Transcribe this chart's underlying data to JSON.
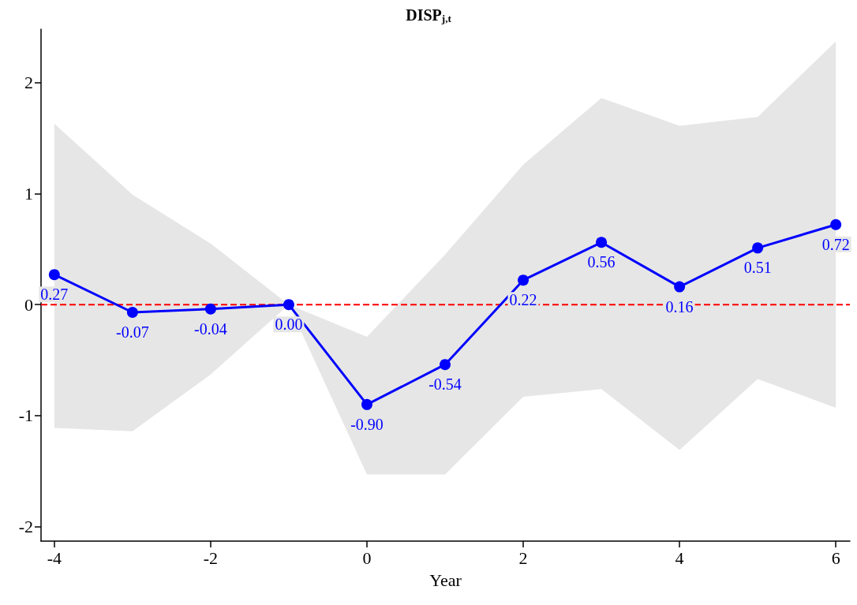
{
  "chart_data": {
    "type": "line",
    "title": "DISP$_{j,t}$",
    "xlabel": "Year",
    "x": [
      -4,
      -3,
      -2,
      -1,
      0,
      1,
      2,
      3,
      4,
      5,
      6
    ],
    "series": [
      {
        "color": "#0000ff",
        "values": [
          0.27,
          -0.07,
          -0.04,
          0.0,
          -0.9,
          -0.54,
          0.22,
          0.56,
          0.16,
          0.51,
          0.72
        ],
        "value_labels": [
          "0.27",
          "-0.07",
          "-0.04",
          "0.00",
          "-0.90",
          "-0.54",
          "0.22",
          "0.56",
          "0.16",
          "0.51",
          "0.72"
        ],
        "lower": [
          -1.11,
          -1.14,
          -0.63,
          0,
          -1.53,
          -1.53,
          -0.83,
          -0.76,
          -1.31,
          -0.67,
          -0.93
        ],
        "upper": [
          1.63,
          0.99,
          0.55,
          0,
          -0.29,
          0.45,
          1.26,
          1.86,
          1.61,
          1.69,
          2.37
        ]
      }
    ],
    "xlim": [
      -4.17,
      6.18
    ],
    "xticks": [
      -4,
      -2,
      0,
      2,
      4,
      6
    ],
    "ylim": [
      -2.13,
      2.48
    ],
    "yticks": [
      -2,
      -1,
      0,
      1,
      2
    ],
    "ref_lines": [
      {
        "axis": "y",
        "value": 0,
        "color": "#ff0000",
        "line_style": "dashed"
      }
    ],
    "grid": false,
    "marker": "circle",
    "line_style": "solid"
  }
}
